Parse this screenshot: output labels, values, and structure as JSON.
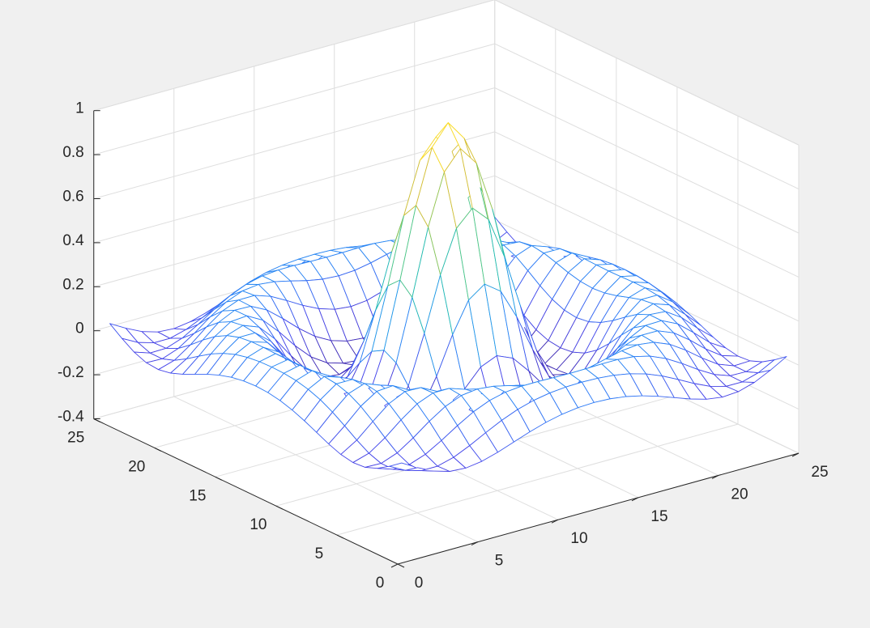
{
  "colors": {
    "figure_background": "#f0f0f0",
    "axes_background": "#ffffff",
    "axis_line": "#262626",
    "grid": "#dedede",
    "colormap": "parula",
    "colormap_stops": [
      "#3e26a8",
      "#4746eb",
      "#2c7ef7",
      "#1caadf",
      "#24bfa9",
      "#70cc6e",
      "#c1bc36",
      "#f9c638",
      "#f9fb15"
    ]
  },
  "chart_data": {
    "type": "mesh",
    "function": "sinc(radial distance from center) sampled on a 25 x 25 grid; peak value 1 at grid point (13,13)",
    "grid_size": [
      25,
      25
    ],
    "x_ticks": [
      "0",
      "5",
      "10",
      "15",
      "20",
      "25"
    ],
    "y_ticks": [
      "0",
      "5",
      "10",
      "15",
      "20",
      "25"
    ],
    "z_ticks": [
      "-0.4",
      "-0.2",
      "0",
      "0.2",
      "0.4",
      "0.6",
      "0.8",
      "1"
    ],
    "xlim": [
      0,
      25
    ],
    "ylim": [
      0,
      25
    ],
    "zlim": [
      -0.4,
      1
    ],
    "z_max": 1,
    "z_min": -0.22,
    "grid": "on",
    "view": "default 3-D (azimuth -37.5, elevation 30)"
  }
}
